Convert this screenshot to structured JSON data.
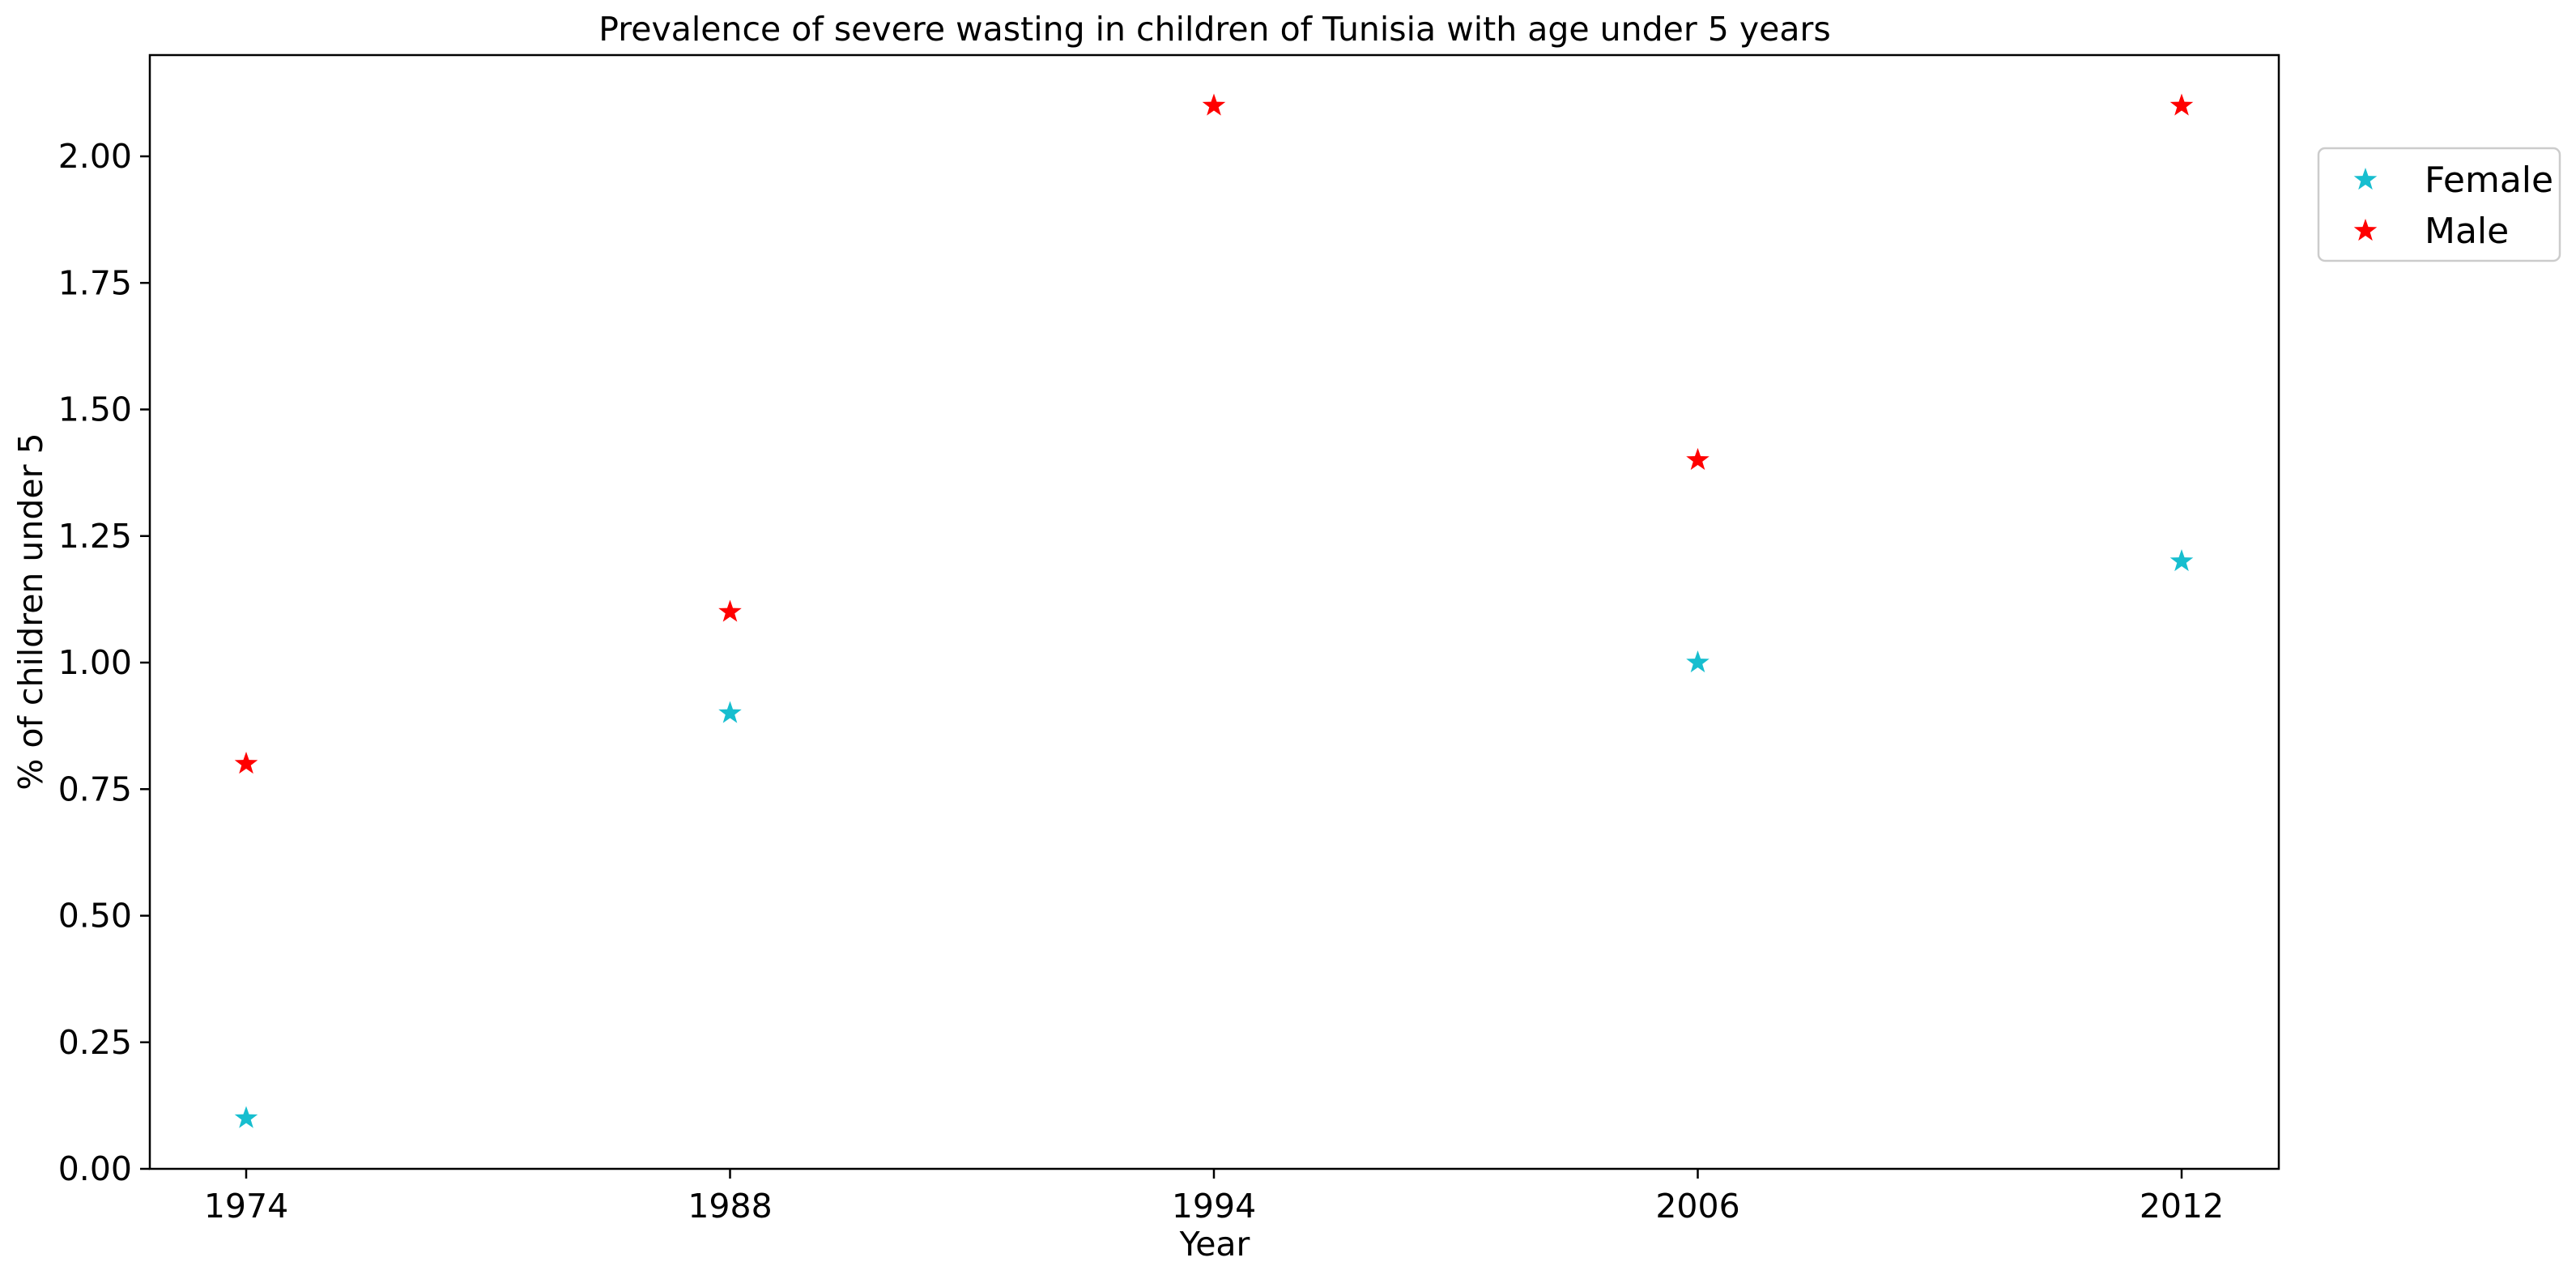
{
  "chart_data": {
    "type": "scatter",
    "title": "Prevalence of severe wasting in children of Tunisia with age under 5 years",
    "xlabel": "Year",
    "ylabel": "% of children under 5",
    "categories": [
      "1974",
      "1988",
      "1994",
      "2006",
      "2012"
    ],
    "ylim": [
      0,
      2.2
    ],
    "yticks": [
      "0.00",
      "0.25",
      "0.50",
      "0.75",
      "1.00",
      "1.25",
      "1.50",
      "1.75",
      "2.00"
    ],
    "grid": false,
    "legend_position": "outside-top-right",
    "marker": "star",
    "series": [
      {
        "name": "Female",
        "color": "#17becf",
        "points": [
          {
            "x": "1974",
            "y": 0.1
          },
          {
            "x": "1988",
            "y": 0.9
          },
          {
            "x": "2006",
            "y": 1.0
          },
          {
            "x": "2012",
            "y": 1.2
          }
        ]
      },
      {
        "name": "Male",
        "color": "#ff0000",
        "points": [
          {
            "x": "1974",
            "y": 0.8
          },
          {
            "x": "1988",
            "y": 1.1
          },
          {
            "x": "1994",
            "y": 2.1
          },
          {
            "x": "2006",
            "y": 1.4
          },
          {
            "x": "2012",
            "y": 2.1
          }
        ]
      }
    ]
  }
}
